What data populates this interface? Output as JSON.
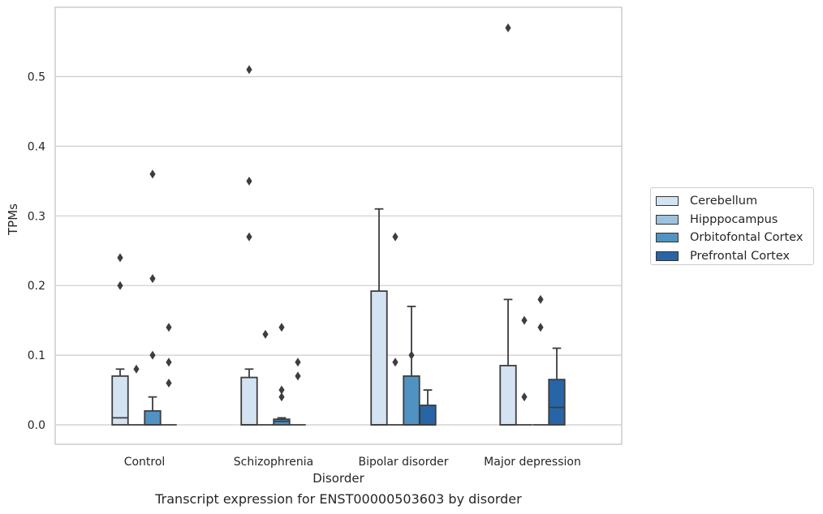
{
  "chart_data": {
    "type": "box",
    "title": "",
    "caption": "Transcript expression for ENST00000503603 by disorder",
    "xlabel": "Disorder",
    "ylabel": "TPMs",
    "ylim": [
      -0.028,
      0.595
    ],
    "yticks": [
      0.0,
      0.1,
      0.2,
      0.3,
      0.4,
      0.5
    ],
    "ytick_labels": [
      "0.0",
      "0.1",
      "0.2",
      "0.3",
      "0.4",
      "0.5"
    ],
    "grid": "horizontal",
    "legend_position": "right",
    "categories": [
      "Control",
      "Schizophrenia",
      "Bipolar disorder",
      "Major depression"
    ],
    "series": [
      {
        "name": "Cerebellum",
        "color": "#d4e3f2",
        "boxes": [
          {
            "q1": 0.0,
            "median": 0.01,
            "q3": 0.07,
            "whisker_low": 0.0,
            "whisker_high": 0.08,
            "outliers": [
              0.2,
              0.24
            ]
          },
          {
            "q1": 0.0,
            "median": 0.0,
            "q3": 0.068,
            "whisker_low": 0.0,
            "whisker_high": 0.08,
            "outliers": [
              0.27,
              0.35,
              0.51
            ]
          },
          {
            "q1": 0.0,
            "median": 0.0,
            "q3": 0.192,
            "whisker_low": 0.0,
            "whisker_high": 0.31,
            "outliers": []
          },
          {
            "q1": 0.0,
            "median": 0.0,
            "q3": 0.085,
            "whisker_low": 0.0,
            "whisker_high": 0.18,
            "outliers": [
              0.57
            ]
          }
        ]
      },
      {
        "name": "Hipppocampus",
        "color": "#9bc3de",
        "boxes": [
          {
            "q1": 0.0,
            "median": 0.0,
            "q3": 0.0,
            "whisker_low": 0.0,
            "whisker_high": 0.0,
            "outliers": [
              0.08
            ]
          },
          {
            "q1": 0.0,
            "median": 0.0,
            "q3": 0.0,
            "whisker_low": 0.0,
            "whisker_high": 0.0,
            "outliers": [
              0.13
            ]
          },
          {
            "q1": 0.0,
            "median": 0.0,
            "q3": 0.0,
            "whisker_low": 0.0,
            "whisker_high": 0.0,
            "outliers": [
              0.09,
              0.27
            ]
          },
          {
            "q1": 0.0,
            "median": 0.0,
            "q3": 0.0,
            "whisker_low": 0.0,
            "whisker_high": 0.0,
            "outliers": [
              0.04,
              0.15
            ]
          }
        ]
      },
      {
        "name": "Orbitofontal Cortex",
        "color": "#5093c3",
        "boxes": [
          {
            "q1": 0.0,
            "median": 0.0,
            "q3": 0.02,
            "whisker_low": 0.0,
            "whisker_high": 0.04,
            "outliers": [
              0.1,
              0.21,
              0.36
            ]
          },
          {
            "q1": 0.0,
            "median": 0.005,
            "q3": 0.008,
            "whisker_low": 0.0,
            "whisker_high": 0.01,
            "outliers": [
              0.04,
              0.05,
              0.14
            ]
          },
          {
            "q1": 0.0,
            "median": 0.0,
            "q3": 0.07,
            "whisker_low": 0.0,
            "whisker_high": 0.17,
            "outliers": [
              0.1
            ]
          },
          {
            "q1": 0.0,
            "median": 0.0,
            "q3": 0.0,
            "whisker_low": 0.0,
            "whisker_high": 0.0,
            "outliers": [
              0.14,
              0.18
            ]
          }
        ]
      },
      {
        "name": "Prefrontal Cortex",
        "color": "#2865a6",
        "boxes": [
          {
            "q1": 0.0,
            "median": 0.0,
            "q3": 0.0,
            "whisker_low": 0.0,
            "whisker_high": 0.0,
            "outliers": [
              0.06,
              0.09,
              0.14
            ]
          },
          {
            "q1": 0.0,
            "median": 0.0,
            "q3": 0.0,
            "whisker_low": 0.0,
            "whisker_high": 0.0,
            "outliers": [
              0.07,
              0.09
            ]
          },
          {
            "q1": 0.0,
            "median": 0.0,
            "q3": 0.028,
            "whisker_low": 0.0,
            "whisker_high": 0.05,
            "outliers": []
          },
          {
            "q1": 0.0,
            "median": 0.025,
            "q3": 0.065,
            "whisker_low": 0.0,
            "whisker_high": 0.11,
            "outliers": []
          }
        ]
      }
    ]
  }
}
